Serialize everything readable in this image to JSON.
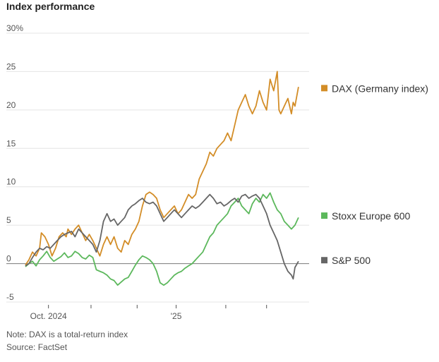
{
  "chart_data": {
    "type": "line",
    "title": "Index performance",
    "xlabel": "",
    "ylabel": "",
    "ylim": [
      -5,
      30
    ],
    "yticks": [
      {
        "value": 30,
        "label": "30%"
      },
      {
        "value": 25,
        "label": "25"
      },
      {
        "value": 20,
        "label": "20"
      },
      {
        "value": 15,
        "label": "15"
      },
      {
        "value": 10,
        "label": "10"
      },
      {
        "value": 5,
        "label": "5"
      },
      {
        "value": 0,
        "label": "0"
      },
      {
        "value": -5,
        "label": "-5"
      }
    ],
    "xlim": [
      0,
      160
    ],
    "xticks": [
      {
        "value": 13,
        "label": "Oct. 2024"
      },
      {
        "value": 37,
        "label": ""
      },
      {
        "value": 63,
        "label": ""
      },
      {
        "value": 85,
        "label": "'25"
      },
      {
        "value": 113,
        "label": ""
      },
      {
        "value": 136,
        "label": ""
      }
    ],
    "x_unit": "trading day index (approx.)",
    "series": [
      {
        "name": "DAX (Germany index)",
        "color": "#d38d27",
        "points": [
          [
            0,
            -0.2
          ],
          [
            2,
            0.5
          ],
          [
            4,
            1.5
          ],
          [
            6,
            1.0
          ],
          [
            8,
            2.0
          ],
          [
            9,
            4.0
          ],
          [
            11,
            3.5
          ],
          [
            13,
            2.5
          ],
          [
            15,
            1.0
          ],
          [
            17,
            2.0
          ],
          [
            19,
            3.5
          ],
          [
            21,
            4.0
          ],
          [
            23,
            3.5
          ],
          [
            24,
            4.5
          ],
          [
            26,
            3.8
          ],
          [
            28,
            4.5
          ],
          [
            30,
            5.0
          ],
          [
            32,
            4.0
          ],
          [
            34,
            3.0
          ],
          [
            36,
            3.8
          ],
          [
            38,
            3.0
          ],
          [
            40,
            2.0
          ],
          [
            42,
            1.0
          ],
          [
            44,
            2.5
          ],
          [
            46,
            3.5
          ],
          [
            48,
            2.5
          ],
          [
            50,
            3.5
          ],
          [
            52,
            2.0
          ],
          [
            54,
            1.5
          ],
          [
            56,
            3.0
          ],
          [
            58,
            2.5
          ],
          [
            60,
            3.8
          ],
          [
            62,
            4.5
          ],
          [
            64,
            5.5
          ],
          [
            66,
            7.5
          ],
          [
            68,
            9.0
          ],
          [
            70,
            9.3
          ],
          [
            72,
            9.0
          ],
          [
            74,
            8.5
          ],
          [
            76,
            7.0
          ],
          [
            78,
            6.0
          ],
          [
            80,
            6.5
          ],
          [
            82,
            7.0
          ],
          [
            84,
            7.5
          ],
          [
            86,
            6.5
          ],
          [
            88,
            7.0
          ],
          [
            90,
            8.0
          ],
          [
            92,
            9.0
          ],
          [
            94,
            8.5
          ],
          [
            96,
            9.0
          ],
          [
            98,
            11.0
          ],
          [
            100,
            12.0
          ],
          [
            102,
            13.0
          ],
          [
            104,
            14.5
          ],
          [
            106,
            14.0
          ],
          [
            108,
            15.0
          ],
          [
            110,
            15.5
          ],
          [
            112,
            16.0
          ],
          [
            114,
            17.0
          ],
          [
            116,
            16.0
          ],
          [
            118,
            18.0
          ],
          [
            120,
            20.0
          ],
          [
            122,
            21.0
          ],
          [
            124,
            22.0
          ],
          [
            126,
            20.5
          ],
          [
            128,
            19.5
          ],
          [
            130,
            20.5
          ],
          [
            132,
            22.5
          ],
          [
            134,
            21.0
          ],
          [
            136,
            20.0
          ],
          [
            138,
            24.0
          ],
          [
            140,
            22.5
          ],
          [
            142,
            25.0
          ],
          [
            143,
            20.0
          ],
          [
            144,
            19.5
          ],
          [
            146,
            20.5
          ],
          [
            148,
            21.5
          ],
          [
            150,
            19.5
          ],
          [
            151,
            21.0
          ],
          [
            152,
            20.5
          ],
          [
            154,
            23.0
          ]
        ]
      },
      {
        "name": "Stoxx Europe 600",
        "color": "#5cb85c",
        "points": [
          [
            0,
            -0.4
          ],
          [
            2,
            0.0
          ],
          [
            4,
            0.3
          ],
          [
            6,
            -0.3
          ],
          [
            8,
            0.5
          ],
          [
            10,
            1.0
          ],
          [
            12,
            1.6
          ],
          [
            14,
            0.8
          ],
          [
            16,
            0.3
          ],
          [
            18,
            0.6
          ],
          [
            20,
            0.9
          ],
          [
            22,
            1.4
          ],
          [
            24,
            0.8
          ],
          [
            26,
            1.0
          ],
          [
            28,
            1.6
          ],
          [
            30,
            1.3
          ],
          [
            32,
            0.8
          ],
          [
            34,
            0.6
          ],
          [
            36,
            1.1
          ],
          [
            38,
            0.8
          ],
          [
            40,
            -0.8
          ],
          [
            42,
            -1.0
          ],
          [
            44,
            -1.2
          ],
          [
            46,
            -1.5
          ],
          [
            48,
            -2.0
          ],
          [
            50,
            -2.2
          ],
          [
            52,
            -2.8
          ],
          [
            54,
            -2.4
          ],
          [
            56,
            -2.0
          ],
          [
            58,
            -1.8
          ],
          [
            60,
            -1.0
          ],
          [
            62,
            -0.2
          ],
          [
            64,
            0.5
          ],
          [
            66,
            1.0
          ],
          [
            68,
            0.8
          ],
          [
            70,
            0.5
          ],
          [
            72,
            0.0
          ],
          [
            74,
            -1.0
          ],
          [
            76,
            -2.5
          ],
          [
            78,
            -2.8
          ],
          [
            80,
            -2.5
          ],
          [
            82,
            -2.0
          ],
          [
            84,
            -1.5
          ],
          [
            86,
            -1.2
          ],
          [
            88,
            -1.0
          ],
          [
            90,
            -0.6
          ],
          [
            92,
            -0.3
          ],
          [
            94,
            0.0
          ],
          [
            96,
            0.5
          ],
          [
            98,
            1.0
          ],
          [
            100,
            1.5
          ],
          [
            102,
            2.5
          ],
          [
            104,
            3.5
          ],
          [
            106,
            4.0
          ],
          [
            108,
            5.0
          ],
          [
            110,
            5.5
          ],
          [
            112,
            6.0
          ],
          [
            114,
            6.5
          ],
          [
            116,
            7.5
          ],
          [
            118,
            8.0
          ],
          [
            120,
            8.5
          ],
          [
            122,
            7.5
          ],
          [
            124,
            7.0
          ],
          [
            126,
            6.5
          ],
          [
            128,
            7.8
          ],
          [
            130,
            8.5
          ],
          [
            132,
            8.0
          ],
          [
            134,
            9.0
          ],
          [
            136,
            8.5
          ],
          [
            138,
            9.2
          ],
          [
            140,
            8.0
          ],
          [
            142,
            7.0
          ],
          [
            144,
            6.5
          ],
          [
            146,
            5.5
          ],
          [
            148,
            5.0
          ],
          [
            150,
            4.5
          ],
          [
            152,
            5.0
          ],
          [
            154,
            6.0
          ]
        ]
      },
      {
        "name": "S&P 500",
        "color": "#666666",
        "points": [
          [
            0,
            -0.3
          ],
          [
            2,
            0.0
          ],
          [
            4,
            0.8
          ],
          [
            6,
            1.5
          ],
          [
            8,
            2.0
          ],
          [
            10,
            1.8
          ],
          [
            12,
            2.2
          ],
          [
            14,
            2.0
          ],
          [
            16,
            2.5
          ],
          [
            18,
            3.0
          ],
          [
            20,
            3.5
          ],
          [
            22,
            3.8
          ],
          [
            24,
            4.0
          ],
          [
            26,
            4.2
          ],
          [
            28,
            3.5
          ],
          [
            30,
            4.5
          ],
          [
            32,
            4.0
          ],
          [
            34,
            3.5
          ],
          [
            36,
            3.0
          ],
          [
            38,
            2.5
          ],
          [
            40,
            1.5
          ],
          [
            42,
            3.0
          ],
          [
            44,
            5.5
          ],
          [
            46,
            6.5
          ],
          [
            48,
            5.5
          ],
          [
            50,
            5.8
          ],
          [
            52,
            5.0
          ],
          [
            54,
            5.5
          ],
          [
            56,
            6.0
          ],
          [
            58,
            7.0
          ],
          [
            60,
            7.5
          ],
          [
            62,
            7.8
          ],
          [
            64,
            8.2
          ],
          [
            66,
            8.5
          ],
          [
            68,
            8.0
          ],
          [
            70,
            7.8
          ],
          [
            72,
            8.0
          ],
          [
            74,
            7.5
          ],
          [
            76,
            6.5
          ],
          [
            78,
            5.5
          ],
          [
            80,
            6.0
          ],
          [
            82,
            6.5
          ],
          [
            84,
            7.0
          ],
          [
            86,
            6.5
          ],
          [
            88,
            6.0
          ],
          [
            90,
            6.5
          ],
          [
            92,
            7.0
          ],
          [
            94,
            7.5
          ],
          [
            96,
            7.2
          ],
          [
            98,
            7.5
          ],
          [
            100,
            8.0
          ],
          [
            102,
            8.5
          ],
          [
            104,
            9.0
          ],
          [
            106,
            8.5
          ],
          [
            108,
            7.8
          ],
          [
            110,
            8.0
          ],
          [
            112,
            7.5
          ],
          [
            114,
            7.8
          ],
          [
            116,
            8.2
          ],
          [
            118,
            8.5
          ],
          [
            120,
            8.0
          ],
          [
            122,
            8.8
          ],
          [
            124,
            9.0
          ],
          [
            126,
            8.5
          ],
          [
            128,
            8.8
          ],
          [
            130,
            9.0
          ],
          [
            132,
            8.5
          ],
          [
            134,
            7.5
          ],
          [
            136,
            6.5
          ],
          [
            138,
            5.0
          ],
          [
            140,
            4.0
          ],
          [
            142,
            3.0
          ],
          [
            144,
            1.5
          ],
          [
            146,
            0.0
          ],
          [
            148,
            -1.0
          ],
          [
            150,
            -1.5
          ],
          [
            151,
            -2.0
          ],
          [
            152,
            -0.5
          ],
          [
            154,
            0.3
          ]
        ]
      }
    ],
    "legend": {
      "placement": "right",
      "entries": [
        {
          "label": "DAX (Germany index)",
          "color": "#d38d27"
        },
        {
          "label": "Stoxx Europe 600",
          "color": "#5cb85c"
        },
        {
          "label": "S&P 500",
          "color": "#666666"
        }
      ]
    }
  },
  "footer": {
    "note": "Note: DAX is a total-return index",
    "source": "Source: FactSet"
  }
}
